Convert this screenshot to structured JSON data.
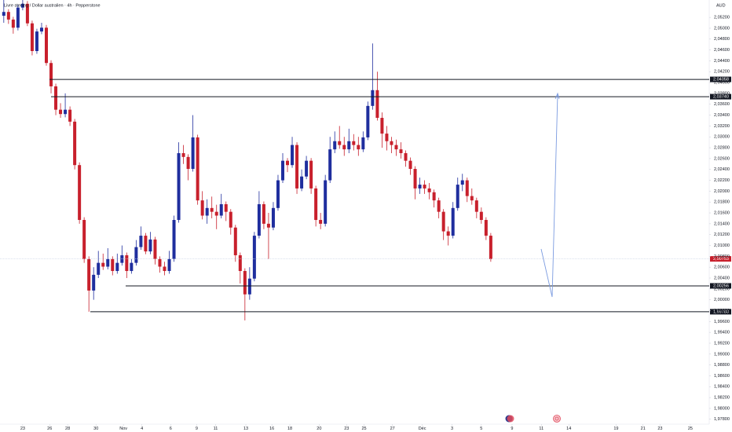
{
  "chart_data": {
    "type": "candlestick",
    "title": "Livre sterling / Dollar australien · 4h · Pepperstone",
    "currency": "AUD",
    "up_color": "#1f2e9e",
    "down_color": "#c8202c",
    "candles": {
      "open": [
        2.0523,
        2.053,
        2.0516,
        2.0501,
        2.0538,
        2.0545,
        2.0509,
        2.0458,
        2.0494,
        2.0501,
        2.0436,
        2.0393,
        2.035,
        2.0342,
        2.035,
        2.0328,
        2.0248,
        2.0147,
        2.0075,
        2.0017,
        2.0046,
        2.0068,
        2.0061,
        2.0075,
        2.0053,
        2.0068,
        2.0082,
        2.0053,
        2.0068,
        2.0097,
        2.0118,
        2.0089,
        2.0111,
        2.0075,
        2.0061,
        2.0053,
        2.0075,
        2.0147,
        2.027,
        2.0263,
        2.0241,
        2.0299,
        2.0183,
        2.0155,
        2.0169,
        2.0162,
        2.0155,
        2.0176,
        2.0162,
        2.0133,
        2.0082,
        2.0053,
        2.001,
        2.0039,
        2.0118,
        2.0176,
        2.014,
        2.0133,
        2.0169,
        2.022,
        2.0256,
        2.0248,
        2.0285,
        2.0205,
        2.0227,
        2.0256,
        2.0205,
        2.0147,
        2.014,
        2.022,
        2.0277,
        2.0292,
        2.0285,
        2.0277,
        2.0292,
        2.0285,
        2.0277,
        2.0299,
        2.0357,
        2.0386,
        2.0335,
        2.0306,
        2.0292,
        2.0285,
        2.0277,
        2.027,
        2.0256,
        2.0241,
        2.0205,
        2.0212,
        2.0205,
        2.0198,
        2.0183,
        2.0162,
        2.0126,
        2.0118,
        2.0169,
        2.0212,
        2.022,
        2.0191,
        2.0183,
        2.0162,
        2.0147,
        2.0118
      ],
      "high": [
        2.0552,
        2.0535,
        2.0521,
        2.0543,
        2.0552,
        2.055,
        2.0514,
        2.0499,
        2.051,
        2.0506,
        2.0441,
        2.0398,
        2.0362,
        2.038,
        2.0356,
        2.0333,
        2.0253,
        2.0152,
        2.008,
        2.006,
        2.009,
        2.0085,
        2.0095,
        2.008,
        2.0085,
        2.01,
        2.0087,
        2.0075,
        2.011,
        2.0135,
        2.0123,
        2.0125,
        2.0116,
        2.008,
        2.007,
        2.009,
        2.0155,
        2.029,
        2.0285,
        2.0268,
        2.034,
        2.0304,
        2.02,
        2.0185,
        2.019,
        2.0175,
        2.0195,
        2.0181,
        2.0167,
        2.0138,
        2.0087,
        2.0058,
        2.006,
        2.0125,
        2.02,
        2.0181,
        2.016,
        2.018,
        2.023,
        2.027,
        2.0261,
        2.03,
        2.029,
        2.024,
        2.0265,
        2.0261,
        2.021,
        2.016,
        2.023,
        2.03,
        2.031,
        2.032,
        2.03,
        2.0315,
        2.0305,
        2.03,
        2.031,
        2.0365,
        2.0472,
        2.042,
        2.0345,
        2.032,
        2.03,
        2.0295,
        2.029,
        2.0275,
        2.0262,
        2.0246,
        2.0225,
        2.022,
        2.0215,
        2.0203,
        2.0188,
        2.0167,
        2.0135,
        2.018,
        2.0225,
        2.0232,
        2.0225,
        2.0205,
        2.0188,
        2.017,
        2.0152,
        2.0123
      ],
      "low": [
        2.051,
        2.0508,
        2.049,
        2.0496,
        2.0533,
        2.0504,
        2.045,
        2.0453,
        2.0489,
        2.0431,
        2.038,
        2.034,
        2.0335,
        2.0336,
        2.032,
        2.024,
        2.014,
        2.0068,
        1.9978,
        2.0,
        2.004,
        2.0055,
        2.0056,
        2.0045,
        2.0048,
        2.0063,
        2.004,
        2.0048,
        2.0063,
        2.0092,
        2.0084,
        2.0084,
        2.0065,
        2.005,
        2.0045,
        2.0048,
        2.007,
        2.0142,
        2.025,
        2.022,
        2.0236,
        2.0175,
        2.0148,
        2.014,
        2.015,
        2.013,
        2.015,
        2.0145,
        2.012,
        2.007,
        2.003,
        1.9962,
        2.0,
        2.0034,
        2.0113,
        2.013,
        2.0075,
        2.0128,
        2.0164,
        2.0215,
        2.0235,
        2.0243,
        2.0195,
        2.02,
        2.0222,
        2.0195,
        2.0135,
        2.013,
        2.0135,
        2.0215,
        2.027,
        2.0278,
        2.0265,
        2.027,
        2.0275,
        2.0265,
        2.0272,
        2.0294,
        2.035,
        2.033,
        2.028,
        2.0275,
        2.027,
        2.0265,
        2.026,
        2.0245,
        2.023,
        2.0185,
        2.0195,
        2.0195,
        2.0185,
        2.017,
        2.015,
        2.011,
        2.01,
        2.0113,
        2.0164,
        2.02,
        2.018,
        2.0175,
        2.015,
        2.014,
        2.011,
        2.007
      ],
      "close": [
        2.053,
        2.0516,
        2.0501,
        2.0538,
        2.0545,
        2.0509,
        2.0458,
        2.0494,
        2.0501,
        2.0436,
        2.0393,
        2.035,
        2.0342,
        2.035,
        2.0328,
        2.0248,
        2.0147,
        2.0075,
        2.0017,
        2.0046,
        2.0068,
        2.0061,
        2.0075,
        2.0053,
        2.0068,
        2.0082,
        2.0053,
        2.0068,
        2.0097,
        2.0118,
        2.0089,
        2.0111,
        2.0075,
        2.0061,
        2.0053,
        2.0075,
        2.0147,
        2.027,
        2.0263,
        2.0241,
        2.0299,
        2.0183,
        2.0155,
        2.0169,
        2.0162,
        2.0155,
        2.0176,
        2.0162,
        2.0133,
        2.0082,
        2.0053,
        2.001,
        2.0039,
        2.0118,
        2.0176,
        2.014,
        2.0133,
        2.0169,
        2.022,
        2.0256,
        2.0248,
        2.0285,
        2.0205,
        2.0227,
        2.0256,
        2.0205,
        2.0147,
        2.014,
        2.022,
        2.0277,
        2.0292,
        2.0285,
        2.0277,
        2.0292,
        2.0285,
        2.0277,
        2.0299,
        2.0357,
        2.0386,
        2.0335,
        2.0306,
        2.0292,
        2.0285,
        2.0277,
        2.027,
        2.0256,
        2.0241,
        2.0205,
        2.0212,
        2.0205,
        2.0198,
        2.0183,
        2.0162,
        2.0126,
        2.0118,
        2.0169,
        2.0212,
        2.022,
        2.0191,
        2.0183,
        2.0162,
        2.0147,
        2.0118,
        2.0075
      ]
    },
    "ylim": [
      1.9771,
      2.0552
    ],
    "yticks": [
      {
        "value": 2.052,
        "label": "2,05200"
      },
      {
        "value": 2.05,
        "label": "2,05000"
      },
      {
        "value": 2.048,
        "label": "2,04800"
      },
      {
        "value": 2.046,
        "label": "2,04600"
      },
      {
        "value": 2.044,
        "label": "2,04400"
      },
      {
        "value": 2.042,
        "label": "2,04200"
      },
      {
        "value": 2.04,
        "label": "2,04000"
      },
      {
        "value": 2.038,
        "label": "2,03800"
      },
      {
        "value": 2.036,
        "label": "2,03600"
      },
      {
        "value": 2.034,
        "label": "2,03400"
      },
      {
        "value": 2.032,
        "label": "2,03200"
      },
      {
        "value": 2.03,
        "label": "2,03000"
      },
      {
        "value": 2.028,
        "label": "2,02800"
      },
      {
        "value": 2.026,
        "label": "2,02600"
      },
      {
        "value": 2.024,
        "label": "2,02400"
      },
      {
        "value": 2.022,
        "label": "2,02200"
      },
      {
        "value": 2.02,
        "label": "2,02000"
      },
      {
        "value": 2.018,
        "label": "2,01800"
      },
      {
        "value": 2.016,
        "label": "2,01600"
      },
      {
        "value": 2.014,
        "label": "2,01400"
      },
      {
        "value": 2.012,
        "label": "2,01200"
      },
      {
        "value": 2.01,
        "label": "2,01000"
      },
      {
        "value": 2.008,
        "label": "2,00800"
      },
      {
        "value": 2.006,
        "label": "2,00600"
      },
      {
        "value": 2.004,
        "label": "2,00400"
      },
      {
        "value": 2.002,
        "label": "2,00200"
      },
      {
        "value": 2.0,
        "label": "2,00000"
      },
      {
        "value": 1.998,
        "label": "1,99800"
      },
      {
        "value": 1.996,
        "label": "1,99600"
      },
      {
        "value": 1.994,
        "label": "1,99400"
      },
      {
        "value": 1.992,
        "label": "1,99200"
      },
      {
        "value": 1.99,
        "label": "1,99000"
      },
      {
        "value": 1.988,
        "label": "1,98800"
      },
      {
        "value": 1.986,
        "label": "1,98600"
      },
      {
        "value": 1.984,
        "label": "1,98400"
      },
      {
        "value": 1.982,
        "label": "1,98200"
      },
      {
        "value": 1.98,
        "label": "1,98000"
      },
      {
        "value": 1.978,
        "label": "1,97800"
      }
    ],
    "xlim": [
      -0.8,
      149.2
    ],
    "xticks": [
      {
        "value": 4,
        "label": "23"
      },
      {
        "value": 9.7,
        "label": "26"
      },
      {
        "value": 13.5,
        "label": "28"
      },
      {
        "value": 19.5,
        "label": "30"
      },
      {
        "value": 25.3,
        "label": "Nov"
      },
      {
        "value": 29.2,
        "label": "4"
      },
      {
        "value": 35.3,
        "label": "6"
      },
      {
        "value": 40.8,
        "label": "9"
      },
      {
        "value": 44.8,
        "label": "11"
      },
      {
        "value": 51.2,
        "label": "13"
      },
      {
        "value": 56.7,
        "label": "16"
      },
      {
        "value": 60.5,
        "label": "18"
      },
      {
        "value": 66.7,
        "label": "20"
      },
      {
        "value": 72.5,
        "label": "23"
      },
      {
        "value": 76.2,
        "label": "25"
      },
      {
        "value": 82.2,
        "label": "27"
      },
      {
        "value": 88.5,
        "label": "Déc"
      },
      {
        "value": 94.8,
        "label": "3"
      },
      {
        "value": 101,
        "label": "5"
      },
      {
        "value": 107.5,
        "label": "9"
      },
      {
        "value": 113.7,
        "label": "11"
      },
      {
        "value": 119.5,
        "label": "14"
      },
      {
        "value": 129.5,
        "label": "19"
      },
      {
        "value": 135.2,
        "label": "21"
      },
      {
        "value": 138.8,
        "label": "23"
      },
      {
        "value": 145.2,
        "label": "25"
      }
    ],
    "levels": [
      {
        "value": 2.04058,
        "label": "2,04058"
      },
      {
        "value": 2.0374,
        "label": "2,03740"
      },
      {
        "value": 2.00256,
        "label": "2,00256"
      },
      {
        "value": 1.9978,
        "label": "1,99780"
      }
    ],
    "last_price": {
      "value": 2.00753,
      "label": "2,00753"
    }
  }
}
